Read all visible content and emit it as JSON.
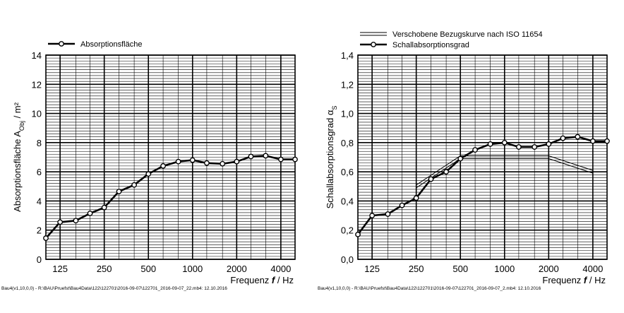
{
  "chart_data": [
    {
      "type": "line",
      "ylabel_main": "Absorptionsfläche A",
      "ylabel_sub": "Obj",
      "ylabel_tail": " / m²",
      "xlabel_main": "Frequenz ",
      "xlabel_var": "f",
      "xlabel_tail": " / Hz",
      "xlim": [
        100,
        5000
      ],
      "ylim": [
        0,
        14
      ],
      "y_ticks": [
        "0",
        "2",
        "4",
        "6",
        "8",
        "10",
        "12",
        "14"
      ],
      "x_ticks": [
        "125",
        "250",
        "500",
        "1000",
        "2000",
        "4000"
      ],
      "grid": true,
      "legend_position": "top-left",
      "series": [
        {
          "name": "Absorptionsfläche",
          "x": [
            100,
            125,
            160,
            200,
            250,
            315,
            400,
            500,
            630,
            800,
            1000,
            1250,
            1600,
            2000,
            2500,
            3150,
            4000,
            5000
          ],
          "values": [
            1.45,
            2.55,
            2.65,
            3.15,
            3.55,
            4.65,
            5.1,
            5.85,
            6.4,
            6.7,
            6.8,
            6.6,
            6.55,
            6.7,
            7.05,
            7.1,
            6.85,
            6.85
          ]
        }
      ],
      "footer": "Bau4(v1,10,0,0)  -  R:\\BAU\\Pruefst\\Bau4Data\\122\\122701\\2016-09-07\\122701_2016-09-07_22.mb4: 12.10.2016"
    },
    {
      "type": "line",
      "ylabel_main": "Schallabsorptionsgrad α",
      "ylabel_sub": "S",
      "ylabel_tail": "",
      "xlabel_main": "Frequenz ",
      "xlabel_var": "f",
      "xlabel_tail": " / Hz",
      "xlim": [
        100,
        5000
      ],
      "ylim": [
        0,
        1.4
      ],
      "y_ticks": [
        "0,0",
        "0,2",
        "0,4",
        "0,6",
        "0,8",
        "1,0",
        "1,2",
        "1,4"
      ],
      "x_ticks": [
        "125",
        "250",
        "500",
        "1000",
        "2000",
        "4000"
      ],
      "grid": true,
      "legend_position": "top-left",
      "reference_curve": {
        "name": "Verschobene Bezugskurve nach ISO 11654",
        "x": [
          250,
          500,
          1000,
          2000,
          4000
        ],
        "values": [
          0.5,
          0.7,
          0.7,
          0.7,
          0.6
        ]
      },
      "series": [
        {
          "name": "Schallabsorptionsgrad",
          "x": [
            100,
            125,
            160,
            200,
            250,
            315,
            400,
            500,
            630,
            800,
            1000,
            1250,
            1600,
            2000,
            2500,
            3150,
            4000,
            5000
          ],
          "values": [
            0.17,
            0.3,
            0.31,
            0.37,
            0.42,
            0.55,
            0.6,
            0.69,
            0.75,
            0.79,
            0.8,
            0.77,
            0.77,
            0.79,
            0.83,
            0.84,
            0.81,
            0.81
          ]
        }
      ],
      "footer": "Bau4(v1,10,0,0)  -  R:\\BAU\\Pruefst\\Bau4Data\\122\\122701\\2016-09-07\\122701_2016-09-07_2.mb4: 12.10.2016"
    }
  ]
}
